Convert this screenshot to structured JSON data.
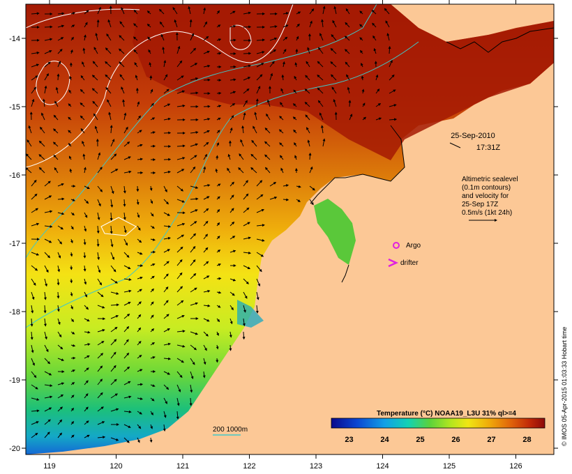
{
  "map": {
    "date": "25-Sep-2010",
    "time": "17:31Z",
    "altimetry_note": [
      "Altimetric sealevel",
      "(0.1m contours)",
      "and velocity for",
      "25-Sep 17Z",
      "0.5m/s (1kt 24h)"
    ],
    "legend_argo": "Argo",
    "legend_drifter": "drifter",
    "bathymetry_label": "200  1000m",
    "credit": "© IMOS 05-Apr-2015 01:03:33 Hobart time",
    "lon_ticks": [
      "119",
      "120",
      "121",
      "122",
      "123",
      "124",
      "125",
      "126"
    ],
    "lat_ticks": [
      "-14",
      "-15",
      "-16",
      "-17",
      "-18",
      "-19",
      "-20"
    ],
    "colors": {
      "land": "#fcc896",
      "argo": "#e020e0",
      "drifter": "#e020e0",
      "contour": "#ffffff",
      "isobath": "#40c8c8"
    }
  },
  "colorbar": {
    "title": "Temperature (°C) NOAA19_L3U 31% ql>=4",
    "labels": [
      "23",
      "24",
      "25",
      "26",
      "27",
      "28"
    ],
    "range": [
      22.5,
      28.5
    ]
  }
}
